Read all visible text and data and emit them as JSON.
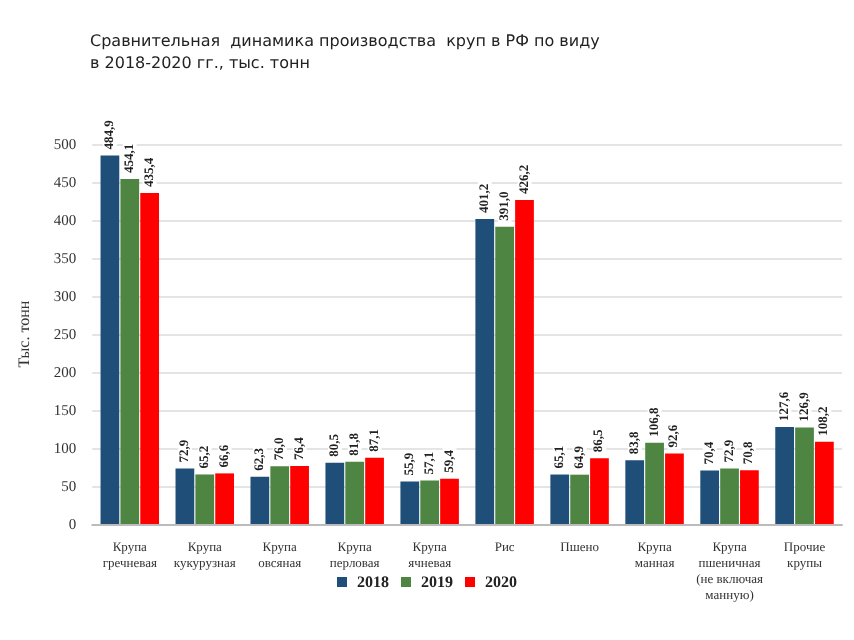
{
  "chart_data": {
    "type": "bar",
    "title": "Сравнительная  динамика производства  круп в РФ по виду\nв 2018-2020 гг., тыс. тонн",
    "ylabel": "Тыс. тонн",
    "categories": [
      "Крупа\nгречневая",
      "Крупа\nкукурузная",
      "Крупа\nовсяная",
      "Крупа\nперловая",
      "Крупа\nячневая",
      "Рис",
      "Пшено",
      "Крупа\nманная",
      "Крупа\nпшеничная\n(не включая\nманную)",
      "Прочие\nкрупы"
    ],
    "series": [
      {
        "name": "2018",
        "color": "#1f4e79",
        "values": [
          484.9,
          72.9,
          62.3,
          80.5,
          55.9,
          401.2,
          65.1,
          83.8,
          70.4,
          127.6
        ],
        "value_labels": [
          "484,9",
          "72,9",
          "62,3",
          "80,5",
          "55,9",
          "401,2",
          "65,1",
          "83,8",
          "70,4",
          "127,6"
        ]
      },
      {
        "name": "2019",
        "color": "#4e8542",
        "values": [
          454.1,
          65.2,
          76.0,
          81.8,
          57.1,
          391.0,
          64.9,
          106.8,
          72.9,
          126.9
        ],
        "value_labels": [
          "454,1",
          "65,2",
          "76,0",
          "81,8",
          "57,1",
          "391,0",
          "64,9",
          "106,8",
          "72,9",
          "126,9"
        ]
      },
      {
        "name": "2020",
        "color": "#ff0000",
        "values": [
          435.4,
          66.6,
          76.4,
          87.1,
          59.4,
          426.2,
          86.5,
          92.6,
          70.8,
          108.2
        ],
        "value_labels": [
          "435,4",
          "66,6",
          "76,4",
          "87,1",
          "59,4",
          "426,2",
          "86,5",
          "92,6",
          "70,8",
          "108,2"
        ]
      }
    ],
    "ylim": [
      0,
      500
    ],
    "yticks": [
      0,
      50,
      100,
      150,
      200,
      250,
      300,
      350,
      400,
      450,
      500
    ],
    "grid": "y",
    "legend": "bottom"
  }
}
